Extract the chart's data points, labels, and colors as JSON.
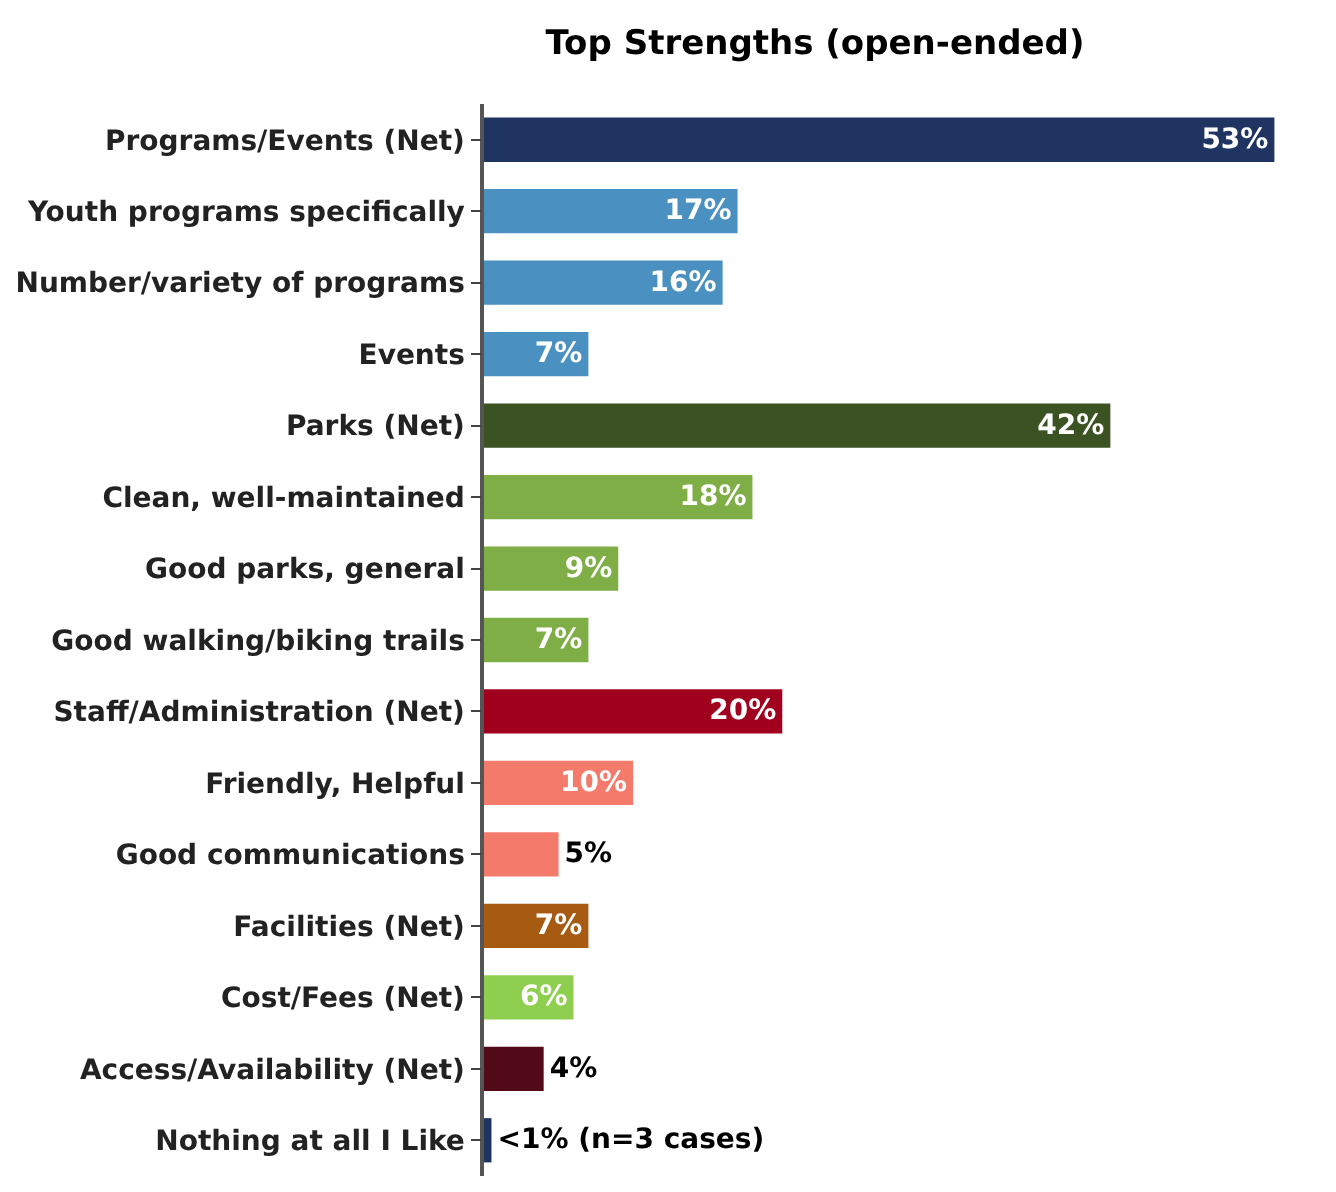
{
  "chart_data": {
    "type": "bar",
    "orientation": "horizontal",
    "title": "Top Strengths (open-ended)",
    "categories": [
      "Programs/Events (Net)",
      "Youth programs specifically",
      "Number/variety of programs",
      "Events",
      "Parks (Net)",
      "Clean, well-maintained",
      "Good parks, general",
      "Good walking/biking trails",
      "Staff/Administration (Net)",
      "Friendly, Helpful",
      "Good communications",
      "Facilities (Net)",
      "Cost/Fees (Net)",
      "Access/Availability (Net)",
      "Nothing at all I Like"
    ],
    "values": [
      53,
      17,
      16,
      7,
      42,
      18,
      9,
      7,
      20,
      10,
      5,
      7,
      6,
      4,
      0.5
    ],
    "colors": [
      "#1f3461",
      "#4a90c0",
      "#4a90c0",
      "#4a90c0",
      "#3b5323",
      "#7eae45",
      "#7eae45",
      "#7eae45",
      "#a0001e",
      "#f47a6c",
      "#f47a6c",
      "#a65a12",
      "#8fcf4f",
      "#520a18",
      "#1f3461"
    ],
    "value_labels": [
      "53%",
      "17%",
      "16%",
      "7%",
      "42%",
      "18%",
      "9%",
      "7%",
      "20%",
      "10%",
      "5%",
      "7%",
      "6%",
      "4%",
      "<1% (n=3 cases)"
    ]
  }
}
